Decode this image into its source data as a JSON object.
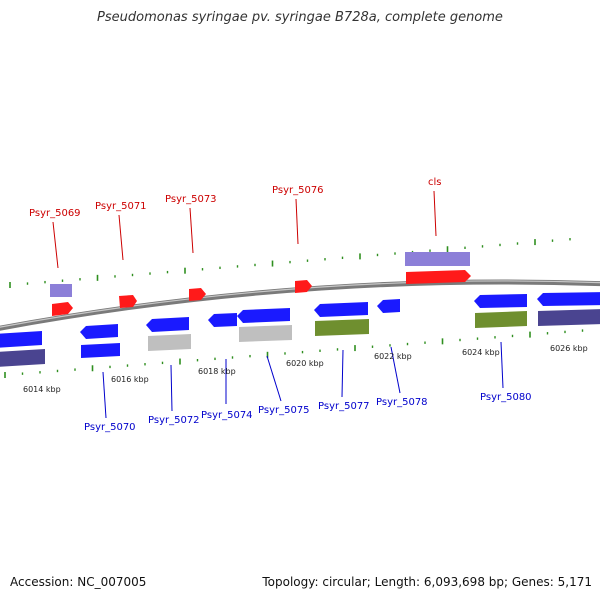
{
  "title": "Pseudomonas syringae pv. syringae B728a, complete genome",
  "footer": {
    "accession": "Accession: NC_007005",
    "summary": "Topology: circular; Length: 6,093,698 bp; Genes: 5,171"
  },
  "colors": {
    "backbone": "#8a8a8a",
    "forward_gene": "#ff1a1a",
    "reverse_gene": "#1a1aff",
    "forward_label": "#cc0000",
    "reverse_label": "#0000cc",
    "tick": "#2f8f1f",
    "cds_lavender": "#8c7fd8",
    "cds_dark": "#4a4490",
    "cds_gray": "#bfbfbf",
    "cds_olive": "#6f8f2f"
  },
  "scale_labels": [
    "6014 kbp",
    "6016 kbp",
    "6018 kbp",
    "6020 kbp",
    "6022 kbp",
    "6024 kbp",
    "6026 kbp"
  ],
  "forward_genes": [
    "Psyr_5069",
    "Psyr_5071",
    "Psyr_5073",
    "Psyr_5076",
    "cls"
  ],
  "reverse_genes": [
    "Psyr_5070",
    "Psyr_5072",
    "Psyr_5074",
    "Psyr_5075",
    "Psyr_5077",
    "Psyr_5078",
    "Psyr_5080"
  ]
}
